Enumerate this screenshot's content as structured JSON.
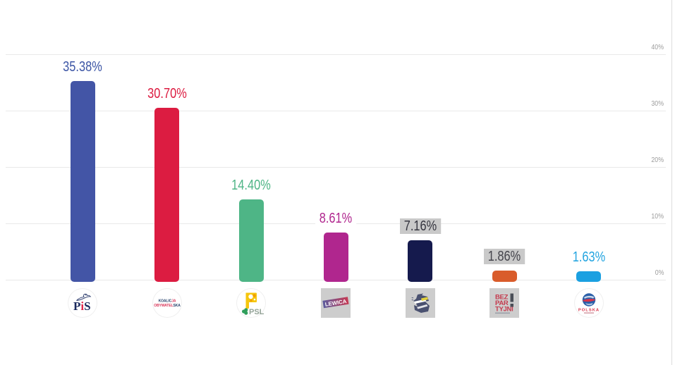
{
  "chart_data": {
    "type": "bar",
    "title": "",
    "xlabel": "",
    "ylabel": "",
    "ylim": [
      0,
      40
    ],
    "grid": true,
    "legend_position": "none",
    "y_axis": {
      "side": "right",
      "tick_labels": [
        "0%",
        "10%",
        "20%",
        "30%",
        "40%"
      ],
      "tick_values": [
        0,
        10,
        20,
        30,
        40
      ],
      "tick_color": "#9c9c9c"
    },
    "categories": [
      "PiS",
      "Koalicja Obywatelska",
      "PSL",
      "Lewica",
      "Konfederacja",
      "Bezpartyjni",
      "Polska Fair Play"
    ],
    "values": [
      35.38,
      30.7,
      14.4,
      8.61,
      7.16,
      1.86,
      1.63
    ],
    "bars": [
      {
        "category": "PiS",
        "value": 35.38,
        "label": "35.38%",
        "bar_color": "#4355a6",
        "label_color": "#3c55a5",
        "label_bg": "#ffffff",
        "logo": "pis",
        "logo_shape": "circle"
      },
      {
        "category": "Koalicja Obywatelska",
        "value": 30.7,
        "label": "30.70%",
        "bar_color": "#dc1c41",
        "label_color": "#dc1c41",
        "label_bg": "#ffffff",
        "logo": "ko",
        "logo_shape": "circle"
      },
      {
        "category": "PSL",
        "value": 14.4,
        "label": "14.40%",
        "bar_color": "#4eb586",
        "label_color": "#4eb586",
        "label_bg": "#ffffff",
        "logo": "psl",
        "logo_shape": "circle"
      },
      {
        "category": "Lewica",
        "value": 8.61,
        "label": "8.61%",
        "bar_color": "#b0268e",
        "label_color": "#b0268e",
        "label_bg": "#ffffff",
        "logo": "lewica",
        "logo_shape": "square"
      },
      {
        "category": "Konfederacja",
        "value": 7.16,
        "label": "7.16%",
        "bar_color": "#151a4d",
        "label_color": "#35353f",
        "label_bg": "#c9c9c9",
        "logo": "konfederacja",
        "logo_shape": "square"
      },
      {
        "category": "Bezpartyjni",
        "value": 1.86,
        "label": "1.86%",
        "bar_color": "#d95c2b",
        "label_color": "#44444c",
        "label_bg": "#c9c9c9",
        "logo": "bezpartyjni",
        "logo_shape": "square"
      },
      {
        "category": "Polska Fair Play",
        "value": 1.63,
        "label": "1.63%",
        "bar_color": "#1ba0e1",
        "label_color": "#22a4e0",
        "label_bg": "#ffffff",
        "logo": "pfp",
        "logo_shape": "circle"
      }
    ],
    "logo_texts": {
      "pis": {
        "part1": "P",
        "part2": "i",
        "part3": "S"
      },
      "ko": {
        "line1_main": "KOALIC",
        "line1_accent": "JA",
        "line2_main": "OBYWATEL",
        "line2_accent": "SKA"
      },
      "psl": {
        "text": "PSL"
      },
      "lewica": {
        "text": "LEWICA"
      },
      "bezpartyjni": {
        "line1": "BEZ",
        "line2": "PAR",
        "line3": "TYJNI"
      },
      "pfp": {
        "text": "POLSKA"
      }
    }
  },
  "colors": {
    "background": "#ffffff",
    "gridline": "#e9e9e9",
    "page_border": "#dcdcdc",
    "logo_square_bg": "#cdcdcd",
    "label_highlight_bg": "#c9c9c9"
  }
}
